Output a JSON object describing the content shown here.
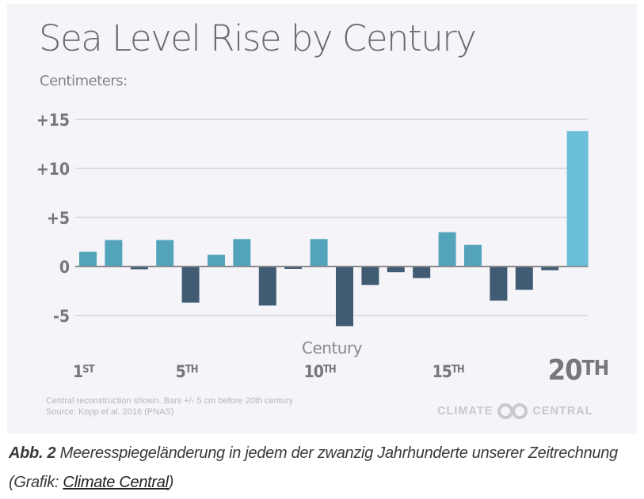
{
  "chart_data": {
    "type": "bar",
    "title": "Sea Level Rise by Century",
    "ylabel": "Centimeters:",
    "xlabel": "Century",
    "ylim": [
      -5,
      15
    ],
    "yticks": [
      15,
      10,
      5,
      0,
      -5
    ],
    "ytick_labels": [
      "+15",
      "+10",
      "+5",
      "0",
      "-5"
    ],
    "grid": true,
    "categories": [
      "1st",
      "2nd",
      "3rd",
      "4th",
      "5th",
      "6th",
      "7th",
      "8th",
      "9th",
      "10th",
      "11th",
      "12th",
      "13th",
      "14th",
      "15th",
      "16th",
      "17th",
      "18th",
      "19th",
      "20th"
    ],
    "values": [
      1.5,
      2.7,
      -0.2,
      2.7,
      -3.6,
      1.2,
      2.8,
      -3.9,
      -0.1,
      2.8,
      -6.0,
      -1.8,
      -0.5,
      -1.1,
      3.5,
      2.2,
      -3.4,
      -2.3,
      -0.3,
      13.8
    ],
    "xtick_labels": [
      {
        "index": 0,
        "num": "1",
        "suffix": "ST"
      },
      {
        "index": 4,
        "num": "5",
        "suffix": "TH"
      },
      {
        "index": 9,
        "num": "10",
        "suffix": "TH"
      },
      {
        "index": 14,
        "num": "15",
        "suffix": "TH"
      },
      {
        "index": 19,
        "num": "20",
        "suffix": "TH",
        "emphasis": true
      }
    ],
    "colors": {
      "positive": "#53a4bb",
      "negative": "#415b73",
      "highlight": "#6bbfd8",
      "grid": "#dcdce0",
      "zero_line": "#8a8a8d"
    },
    "footnote": [
      "Central reconstruction shown. Bars +/- 5 cm before 20th century",
      "Source: Kopp et al. 2016 (PNAS)"
    ]
  },
  "brand": {
    "left": "CLIMATE",
    "right": "CENTRAL"
  },
  "caption": {
    "label": "Abb. 2",
    "text": " Meeresspiegeländerung in jedem der zwanzig Jahrhunderte unserer Zeitrechnung (Grafik: ",
    "link": "Climate Central",
    "close": ")"
  }
}
